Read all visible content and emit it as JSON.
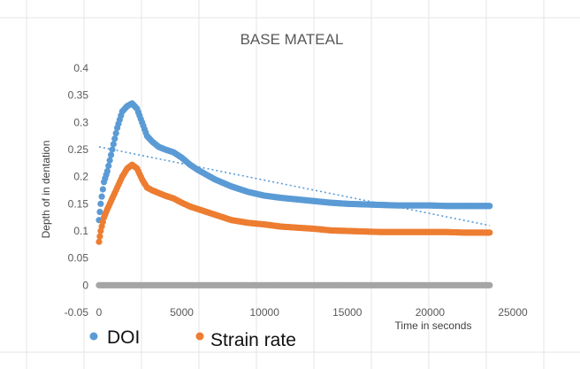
{
  "chart_data": {
    "type": "scatter",
    "title": "BASE MATEAL",
    "xlabel": "Time in seconds",
    "ylabel": "Depth of in dentation",
    "xlim": [
      0,
      25000
    ],
    "ylim": [
      -0.05,
      0.4
    ],
    "x_ticks": [
      "0",
      "5000",
      "10000",
      "15000",
      "20000",
      "25000"
    ],
    "y_ticks": [
      "-0.05",
      "0",
      "0.05",
      "0.1",
      "0.15",
      "0.2",
      "0.25",
      "0.3",
      "0.35",
      "0.4"
    ],
    "grid": "vertical gridlines",
    "legend_position": "bottom-left",
    "series": [
      {
        "name": "DOI",
        "color": "#5B9BD5",
        "x": [
          0,
          100,
          300,
          500,
          800,
          1100,
          1400,
          1700,
          2000,
          2300,
          2600,
          2900,
          3200,
          3600,
          4000,
          4500,
          5000,
          5500,
          6000,
          7000,
          8000,
          9000,
          10000,
          11000,
          12000,
          13000,
          14000,
          15000,
          16000,
          17000,
          18000,
          19000,
          20000,
          21000,
          22000,
          23000,
          23600
        ],
        "y": [
          0.12,
          0.15,
          0.19,
          0.21,
          0.25,
          0.29,
          0.32,
          0.33,
          0.335,
          0.325,
          0.3,
          0.275,
          0.265,
          0.255,
          0.25,
          0.245,
          0.235,
          0.222,
          0.212,
          0.195,
          0.182,
          0.172,
          0.165,
          0.161,
          0.158,
          0.155,
          0.152,
          0.15,
          0.149,
          0.148,
          0.147,
          0.147,
          0.147,
          0.146,
          0.146,
          0.146,
          0.146
        ]
      },
      {
        "name": "Strain rate",
        "color": "#ED7D31",
        "x": [
          0,
          100,
          300,
          500,
          800,
          1100,
          1400,
          1700,
          2000,
          2300,
          2600,
          2900,
          3200,
          3600,
          4000,
          4500,
          5000,
          5500,
          6000,
          7000,
          8000,
          9000,
          10000,
          11000,
          12000,
          13000,
          14000,
          15000,
          16000,
          17000,
          18000,
          19000,
          20000,
          21000,
          22000,
          23000,
          23600
        ],
        "y": [
          0.08,
          0.1,
          0.125,
          0.14,
          0.16,
          0.18,
          0.2,
          0.215,
          0.222,
          0.215,
          0.195,
          0.18,
          0.175,
          0.17,
          0.165,
          0.16,
          0.152,
          0.145,
          0.14,
          0.13,
          0.12,
          0.115,
          0.112,
          0.108,
          0.106,
          0.104,
          0.101,
          0.1,
          0.099,
          0.098,
          0.098,
          0.098,
          0.098,
          0.098,
          0.097,
          0.097,
          0.097
        ]
      },
      {
        "name": "",
        "color": "#A5A5A5",
        "x": [
          0,
          1000,
          2000,
          3000,
          4000,
          5000,
          6000,
          7000,
          8000,
          9000,
          10000,
          11000,
          12000,
          13000,
          14000,
          15000,
          16000,
          17000,
          18000,
          19000,
          20000,
          21000,
          22000,
          23000,
          23600
        ],
        "y": [
          0,
          0,
          0,
          0,
          0,
          0,
          0,
          0,
          0,
          0,
          0,
          0,
          0,
          0,
          0,
          0,
          0,
          0,
          0,
          0,
          0,
          0,
          0,
          0,
          0
        ]
      }
    ],
    "trendline": {
      "series": "DOI",
      "type": "linear",
      "color": "#5B9BD5",
      "x": [
        0,
        23600
      ],
      "y": [
        0.255,
        0.11
      ]
    }
  }
}
